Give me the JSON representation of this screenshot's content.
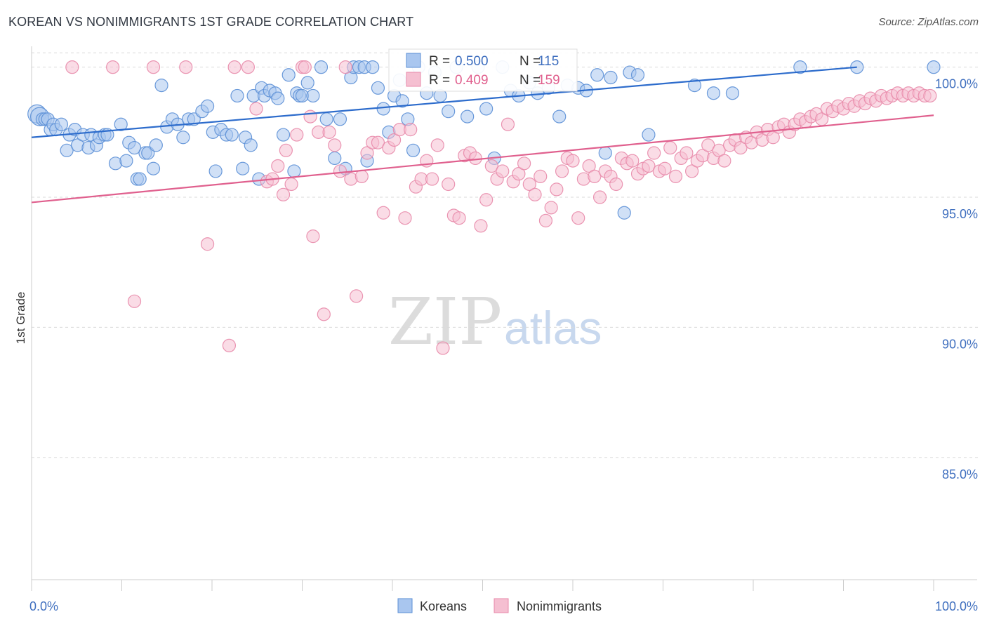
{
  "title": "KOREAN VS NONIMMIGRANTS 1ST GRADE CORRELATION CHART",
  "source": "Source: ZipAtlas.com",
  "watermark": {
    "zip": "ZIP",
    "atlas": "atlas"
  },
  "colors": {
    "blue": "#5b8fd6",
    "blue_fill": "#a9c6ef",
    "blue_line": "#2d6ccc",
    "pink": "#e889aa",
    "pink_fill": "#f5bfd1",
    "pink_line": "#e0608e",
    "grid": "#d9d9d9",
    "axis_text": "#3f6fbf"
  },
  "stats": {
    "koreans": {
      "r_label": "R =",
      "r_value": "0.500",
      "n_label": "N =",
      "n_value": "115"
    },
    "nonimmigrants": {
      "r_label": "R =",
      "r_value": "0.409",
      "n_label": "N =",
      "n_value": "159"
    }
  },
  "legend": {
    "koreans": "Koreans",
    "nonimmigrants": "Nonimmigrants"
  },
  "chart_data": {
    "type": "scatter",
    "title": "KOREAN VS NONIMMIGRANTS 1ST GRADE CORRELATION CHART",
    "xlabel": "",
    "ylabel": "1st Grade",
    "xlim": [
      0,
      100
    ],
    "ylim": [
      80.3,
      100.8
    ],
    "x_tick_labels": [
      "0.0%",
      "100.0%"
    ],
    "y_ticks": [
      85,
      90,
      95,
      100
    ],
    "y_tick_labels": [
      "85.0%",
      "90.0%",
      "95.0%",
      "100.0%"
    ],
    "grid": "horizontal dashed",
    "legend_position": "bottom",
    "series": [
      {
        "name": "Koreans",
        "color": "#5b8fd6",
        "trend": {
          "x": [
            0,
            91.5
          ],
          "y": [
            97.3,
            100.0
          ]
        },
        "points": [
          [
            0.6,
            98.2
          ],
          [
            0.9,
            98.1
          ],
          [
            1.2,
            98.0
          ],
          [
            1.5,
            98.0
          ],
          [
            1.8,
            98.0
          ],
          [
            2.1,
            97.6
          ],
          [
            2.4,
            97.8
          ],
          [
            2.7,
            97.6
          ],
          [
            3.3,
            97.8
          ],
          [
            3.9,
            96.8
          ],
          [
            4.2,
            97.4
          ],
          [
            4.8,
            97.6
          ],
          [
            5.1,
            97.0
          ],
          [
            5.7,
            97.4
          ],
          [
            6.3,
            96.9
          ],
          [
            6.6,
            97.4
          ],
          [
            7.2,
            97.0
          ],
          [
            7.5,
            97.3
          ],
          [
            8.1,
            97.4
          ],
          [
            8.4,
            97.4
          ],
          [
            9.3,
            96.3
          ],
          [
            9.9,
            97.8
          ],
          [
            10.5,
            96.4
          ],
          [
            10.8,
            97.1
          ],
          [
            11.4,
            96.9
          ],
          [
            11.7,
            95.7
          ],
          [
            12.0,
            95.7
          ],
          [
            12.6,
            96.7
          ],
          [
            12.9,
            96.7
          ],
          [
            13.5,
            96.1
          ],
          [
            13.8,
            97.0
          ],
          [
            14.4,
            99.3
          ],
          [
            15.0,
            97.7
          ],
          [
            15.6,
            98.0
          ],
          [
            16.2,
            97.8
          ],
          [
            16.8,
            97.3
          ],
          [
            17.4,
            98.0
          ],
          [
            18.0,
            98.0
          ],
          [
            18.9,
            98.3
          ],
          [
            19.5,
            98.5
          ],
          [
            20.1,
            97.5
          ],
          [
            20.4,
            96.0
          ],
          [
            21.0,
            97.6
          ],
          [
            21.6,
            97.4
          ],
          [
            22.2,
            97.4
          ],
          [
            22.8,
            98.9
          ],
          [
            23.4,
            96.1
          ],
          [
            23.7,
            97.3
          ],
          [
            24.3,
            97.0
          ],
          [
            24.6,
            98.9
          ],
          [
            25.2,
            95.7
          ],
          [
            25.5,
            99.2
          ],
          [
            25.8,
            98.9
          ],
          [
            26.4,
            99.1
          ],
          [
            27.0,
            99.0
          ],
          [
            27.3,
            98.8
          ],
          [
            27.9,
            97.4
          ],
          [
            28.5,
            99.7
          ],
          [
            29.1,
            96.0
          ],
          [
            29.4,
            99.0
          ],
          [
            29.7,
            98.9
          ],
          [
            30.0,
            98.9
          ],
          [
            30.6,
            99.4
          ],
          [
            31.2,
            98.9
          ],
          [
            32.1,
            100.0
          ],
          [
            32.7,
            98.0
          ],
          [
            33.6,
            96.5
          ],
          [
            34.2,
            98.0
          ],
          [
            34.8,
            96.1
          ],
          [
            35.4,
            99.6
          ],
          [
            35.7,
            100.0
          ],
          [
            36.3,
            100.0
          ],
          [
            36.9,
            100.0
          ],
          [
            37.2,
            96.4
          ],
          [
            37.8,
            100.0
          ],
          [
            38.4,
            99.2
          ],
          [
            39.0,
            98.4
          ],
          [
            39.6,
            97.5
          ],
          [
            40.2,
            98.9
          ],
          [
            40.8,
            99.5
          ],
          [
            41.1,
            98.7
          ],
          [
            41.7,
            98.0
          ],
          [
            42.3,
            96.8
          ],
          [
            42.9,
            100.0
          ],
          [
            43.8,
            99.0
          ],
          [
            44.7,
            99.8
          ],
          [
            45.3,
            98.9
          ],
          [
            46.2,
            98.3
          ],
          [
            47.1,
            100.0
          ],
          [
            48.3,
            98.1
          ],
          [
            49.5,
            100.0
          ],
          [
            50.4,
            98.4
          ],
          [
            51.3,
            96.5
          ],
          [
            52.2,
            100.0
          ],
          [
            53.1,
            99.1
          ],
          [
            54.0,
            98.9
          ],
          [
            55.2,
            99.4
          ],
          [
            56.1,
            99.0
          ],
          [
            57.3,
            99.2
          ],
          [
            58.5,
            98.1
          ],
          [
            59.4,
            99.3
          ],
          [
            60.6,
            99.2
          ],
          [
            61.5,
            99.1
          ],
          [
            62.7,
            99.7
          ],
          [
            63.6,
            96.7
          ],
          [
            64.2,
            99.6
          ],
          [
            65.7,
            94.4
          ],
          [
            66.3,
            99.8
          ],
          [
            67.2,
            99.7
          ],
          [
            68.4,
            97.4
          ],
          [
            73.5,
            99.3
          ],
          [
            75.6,
            99.0
          ],
          [
            77.7,
            99.0
          ],
          [
            85.2,
            100.0
          ],
          [
            91.5,
            100.0
          ],
          [
            100.0,
            100.0
          ]
        ]
      },
      {
        "name": "Nonimmigrants",
        "color": "#e889aa",
        "trend": {
          "x": [
            0,
            100
          ],
          "y": [
            94.8,
            98.15
          ]
        },
        "points": [
          [
            4.5,
            100.0
          ],
          [
            9.0,
            100.0
          ],
          [
            11.4,
            91.0
          ],
          [
            13.5,
            100.0
          ],
          [
            17.1,
            100.0
          ],
          [
            19.5,
            93.2
          ],
          [
            21.9,
            89.3
          ],
          [
            22.5,
            100.0
          ],
          [
            24.0,
            100.0
          ],
          [
            24.9,
            98.4
          ],
          [
            26.1,
            95.6
          ],
          [
            26.7,
            95.7
          ],
          [
            27.3,
            96.2
          ],
          [
            27.9,
            95.1
          ],
          [
            28.2,
            96.8
          ],
          [
            28.8,
            95.5
          ],
          [
            29.4,
            97.4
          ],
          [
            30.0,
            100.0
          ],
          [
            30.3,
            100.0
          ],
          [
            30.9,
            98.1
          ],
          [
            31.2,
            93.5
          ],
          [
            31.8,
            97.5
          ],
          [
            32.4,
            90.5
          ],
          [
            33.0,
            97.5
          ],
          [
            33.6,
            97.0
          ],
          [
            34.2,
            96.0
          ],
          [
            34.8,
            100.0
          ],
          [
            35.4,
            95.7
          ],
          [
            36.0,
            91.2
          ],
          [
            36.6,
            95.8
          ],
          [
            37.2,
            96.7
          ],
          [
            37.8,
            97.1
          ],
          [
            38.4,
            97.1
          ],
          [
            39.0,
            94.4
          ],
          [
            39.6,
            96.9
          ],
          [
            40.2,
            97.2
          ],
          [
            40.8,
            97.6
          ],
          [
            41.4,
            94.2
          ],
          [
            42.0,
            97.6
          ],
          [
            42.6,
            95.4
          ],
          [
            43.2,
            95.7
          ],
          [
            43.8,
            96.4
          ],
          [
            44.4,
            95.7
          ],
          [
            45.0,
            97.0
          ],
          [
            45.6,
            89.2
          ],
          [
            46.2,
            95.5
          ],
          [
            46.8,
            94.3
          ],
          [
            47.4,
            94.2
          ],
          [
            48.0,
            96.6
          ],
          [
            48.6,
            96.7
          ],
          [
            49.2,
            96.5
          ],
          [
            49.8,
            93.9
          ],
          [
            50.4,
            94.9
          ],
          [
            51.0,
            96.2
          ],
          [
            51.6,
            95.7
          ],
          [
            52.2,
            96.0
          ],
          [
            52.8,
            97.8
          ],
          [
            53.4,
            95.6
          ],
          [
            54.0,
            95.9
          ],
          [
            54.6,
            96.3
          ],
          [
            55.2,
            95.5
          ],
          [
            55.8,
            95.1
          ],
          [
            56.4,
            95.8
          ],
          [
            57.0,
            94.1
          ],
          [
            57.6,
            94.6
          ],
          [
            58.2,
            95.3
          ],
          [
            58.8,
            96.0
          ],
          [
            59.4,
            96.5
          ],
          [
            60.0,
            96.4
          ],
          [
            60.6,
            94.2
          ],
          [
            61.2,
            95.7
          ],
          [
            61.8,
            96.2
          ],
          [
            62.4,
            95.8
          ],
          [
            63.0,
            95.0
          ],
          [
            63.6,
            96.0
          ],
          [
            64.2,
            95.8
          ],
          [
            64.8,
            95.5
          ],
          [
            65.4,
            96.5
          ],
          [
            66.0,
            96.3
          ],
          [
            66.6,
            96.4
          ],
          [
            67.2,
            95.9
          ],
          [
            67.8,
            96.1
          ],
          [
            68.4,
            96.2
          ],
          [
            69.0,
            96.7
          ],
          [
            69.6,
            96.0
          ],
          [
            70.2,
            96.1
          ],
          [
            70.8,
            96.9
          ],
          [
            71.4,
            95.8
          ],
          [
            72.0,
            96.5
          ],
          [
            72.6,
            96.7
          ],
          [
            73.2,
            96.0
          ],
          [
            73.8,
            96.4
          ],
          [
            74.4,
            96.6
          ],
          [
            75.0,
            97.0
          ],
          [
            75.6,
            96.5
          ],
          [
            76.2,
            96.8
          ],
          [
            76.8,
            96.4
          ],
          [
            77.4,
            97.0
          ],
          [
            78.0,
            97.2
          ],
          [
            78.6,
            96.9
          ],
          [
            79.2,
            97.3
          ],
          [
            79.8,
            97.1
          ],
          [
            80.4,
            97.5
          ],
          [
            81.0,
            97.2
          ],
          [
            81.6,
            97.6
          ],
          [
            82.2,
            97.3
          ],
          [
            82.8,
            97.7
          ],
          [
            83.4,
            97.8
          ],
          [
            84.0,
            97.5
          ],
          [
            84.6,
            97.8
          ],
          [
            85.2,
            98.0
          ],
          [
            85.8,
            97.9
          ],
          [
            86.4,
            98.1
          ],
          [
            87.0,
            98.2
          ],
          [
            87.6,
            98.0
          ],
          [
            88.2,
            98.4
          ],
          [
            88.8,
            98.3
          ],
          [
            89.4,
            98.5
          ],
          [
            90.0,
            98.4
          ],
          [
            90.6,
            98.6
          ],
          [
            91.2,
            98.5
          ],
          [
            91.8,
            98.7
          ],
          [
            92.4,
            98.6
          ],
          [
            93.0,
            98.8
          ],
          [
            93.6,
            98.7
          ],
          [
            94.2,
            98.9
          ],
          [
            94.8,
            98.8
          ],
          [
            95.4,
            98.9
          ],
          [
            96.0,
            99.0
          ],
          [
            96.6,
            98.9
          ],
          [
            97.2,
            99.0
          ],
          [
            97.8,
            98.9
          ],
          [
            98.4,
            99.0
          ],
          [
            99.0,
            98.9
          ],
          [
            99.6,
            98.9
          ]
        ]
      }
    ]
  }
}
